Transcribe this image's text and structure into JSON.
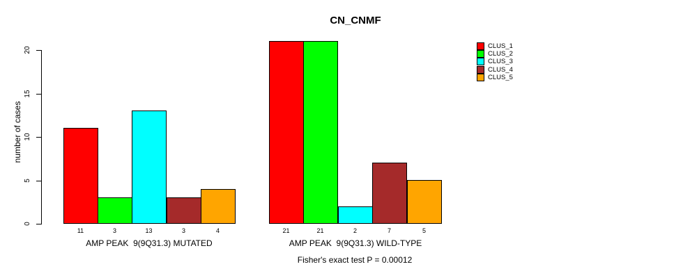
{
  "title": "CN_CNMF",
  "y_axis": {
    "label": "number of cases",
    "ticks": [
      0,
      5,
      10,
      15,
      20
    ]
  },
  "legend": {
    "items": [
      {
        "label": "CLUS_1",
        "color": "#FF0000"
      },
      {
        "label": "CLUS_2",
        "color": "#00FF00"
      },
      {
        "label": "CLUS_3",
        "color": "#00FFFF"
      },
      {
        "label": "CLUS_4",
        "color": "#A52A2A"
      },
      {
        "label": "CLUS_5",
        "color": "#FFA500"
      }
    ]
  },
  "footer": "Fisher's exact test P = 0.00012",
  "chart_data": {
    "type": "bar",
    "title": "CN_CNMF",
    "xlabel": "",
    "ylabel": "number of cases",
    "ylim": [
      0,
      20
    ],
    "yticks": [
      0,
      5,
      10,
      15,
      20
    ],
    "grid": false,
    "legend_position": "right",
    "categories": [
      "AMP PEAK  9(9Q31.3) MUTATED",
      "AMP PEAK  9(9Q31.3) WILD-TYPE"
    ],
    "series": [
      {
        "name": "CLUS_1",
        "color": "#FF0000",
        "values": [
          11,
          21
        ]
      },
      {
        "name": "CLUS_2",
        "color": "#00FF00",
        "values": [
          3,
          21
        ]
      },
      {
        "name": "CLUS_3",
        "color": "#00FFFF",
        "values": [
          13,
          2
        ]
      },
      {
        "name": "CLUS_4",
        "color": "#A52A2A",
        "values": [
          3,
          7
        ]
      },
      {
        "name": "CLUS_5",
        "color": "#FFA500",
        "values": [
          4,
          5
        ]
      }
    ],
    "bar_value_labels": [
      [
        11,
        3,
        13,
        3,
        4
      ],
      [
        21,
        21,
        2,
        7,
        5
      ]
    ],
    "annotation": "Fisher's exact test P = 0.00012"
  }
}
